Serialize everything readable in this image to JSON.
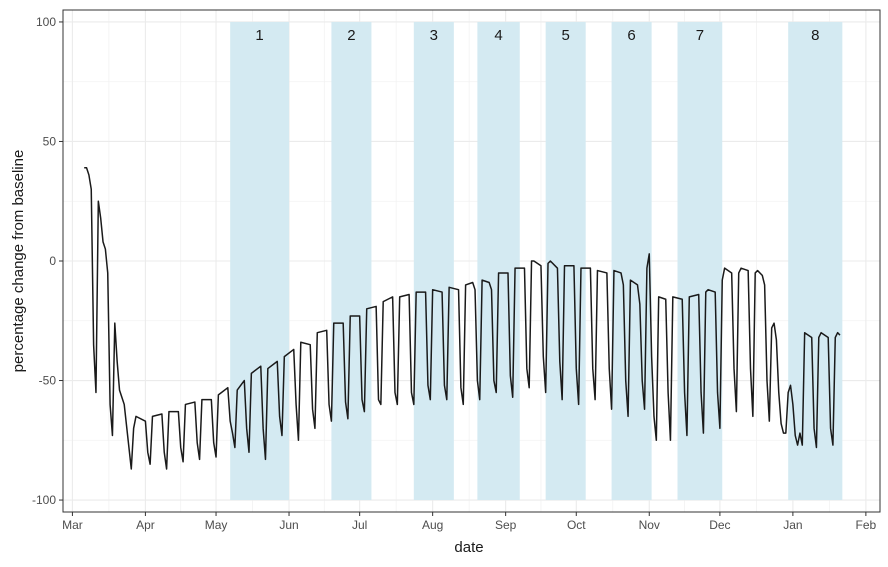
{
  "chart_data": {
    "type": "line",
    "xlabel": "date",
    "ylabel": "percentage change from baseline",
    "ylim": [
      -105,
      105
    ],
    "xlim": [
      "2020-02-26",
      "2021-02-07"
    ],
    "yticks": [
      -100,
      -50,
      0,
      50,
      100
    ],
    "ytick_labels": [
      "-100",
      "-50",
      "0",
      "50",
      "100"
    ],
    "xticks": [
      "2020-03-01",
      "2020-04-01",
      "2020-05-01",
      "2020-06-01",
      "2020-07-01",
      "2020-08-01",
      "2020-09-01",
      "2020-10-01",
      "2020-11-01",
      "2020-12-01",
      "2021-01-01",
      "2021-02-01"
    ],
    "xtick_labels": [
      "Mar",
      "Apr",
      "May",
      "Jun",
      "Jul",
      "Aug",
      "Sep",
      "Oct",
      "Nov",
      "Dec",
      "Jan",
      "Feb"
    ],
    "grid": true,
    "line_color": "#1a1a1a",
    "band_color": "#d4eaf2",
    "bands": [
      {
        "label": "1",
        "start": "2020-05-07",
        "end": "2020-06-01"
      },
      {
        "label": "2",
        "start": "2020-06-19",
        "end": "2020-07-06"
      },
      {
        "label": "3",
        "start": "2020-07-24",
        "end": "2020-08-10"
      },
      {
        "label": "4",
        "start": "2020-08-20",
        "end": "2020-09-07"
      },
      {
        "label": "5",
        "start": "2020-09-18",
        "end": "2020-10-05"
      },
      {
        "label": "6",
        "start": "2020-10-16",
        "end": "2020-11-02"
      },
      {
        "label": "7",
        "start": "2020-11-13",
        "end": "2020-12-02"
      },
      {
        "label": "8",
        "start": "2020-12-30",
        "end": "2021-01-22"
      }
    ],
    "series": [
      {
        "points": [
          [
            "2020-03-06",
            39
          ],
          [
            "2020-03-07",
            39
          ],
          [
            "2020-03-08",
            36
          ],
          [
            "2020-03-09",
            30
          ],
          [
            "2020-03-10",
            -35
          ],
          [
            "2020-03-11",
            -55
          ],
          [
            "2020-03-12",
            25
          ],
          [
            "2020-03-13",
            18
          ],
          [
            "2020-03-14",
            8
          ],
          [
            "2020-03-15",
            5
          ],
          [
            "2020-03-16",
            -5
          ],
          [
            "2020-03-17",
            -60
          ],
          [
            "2020-03-18",
            -73
          ],
          [
            "2020-03-19",
            -26
          ],
          [
            "2020-03-20",
            -42
          ],
          [
            "2020-03-21",
            -54
          ],
          [
            "2020-03-22",
            -57
          ],
          [
            "2020-03-23",
            -60
          ],
          [
            "2020-03-26",
            -87
          ],
          [
            "2020-03-27",
            -70
          ],
          [
            "2020-03-28",
            -65
          ],
          [
            "2020-04-01",
            -67
          ],
          [
            "2020-04-02",
            -80
          ],
          [
            "2020-04-03",
            -85
          ],
          [
            "2020-04-04",
            -65
          ],
          [
            "2020-04-08",
            -64
          ],
          [
            "2020-04-09",
            -80
          ],
          [
            "2020-04-10",
            -87
          ],
          [
            "2020-04-11",
            -63
          ],
          [
            "2020-04-15",
            -63
          ],
          [
            "2020-04-16",
            -78
          ],
          [
            "2020-04-17",
            -84
          ],
          [
            "2020-04-18",
            -60
          ],
          [
            "2020-04-22",
            -59
          ],
          [
            "2020-04-23",
            -76
          ],
          [
            "2020-04-24",
            -83
          ],
          [
            "2020-04-25",
            -58
          ],
          [
            "2020-04-29",
            -58
          ],
          [
            "2020-04-30",
            -76
          ],
          [
            "2020-05-01",
            -82
          ],
          [
            "2020-05-02",
            -56
          ],
          [
            "2020-05-06",
            -53
          ],
          [
            "2020-05-07",
            -67
          ],
          [
            "2020-05-08",
            -72
          ],
          [
            "2020-05-09",
            -78
          ],
          [
            "2020-05-10",
            -54
          ],
          [
            "2020-05-13",
            -50
          ],
          [
            "2020-05-14",
            -70
          ],
          [
            "2020-05-15",
            -80
          ],
          [
            "2020-05-16",
            -47
          ],
          [
            "2020-05-20",
            -44
          ],
          [
            "2020-05-21",
            -70
          ],
          [
            "2020-05-22",
            -83
          ],
          [
            "2020-05-23",
            -45
          ],
          [
            "2020-05-27",
            -42
          ],
          [
            "2020-05-28",
            -65
          ],
          [
            "2020-05-29",
            -73
          ],
          [
            "2020-05-30",
            -40
          ],
          [
            "2020-06-03",
            -37
          ],
          [
            "2020-06-04",
            -60
          ],
          [
            "2020-06-05",
            -75
          ],
          [
            "2020-06-06",
            -34
          ],
          [
            "2020-06-10",
            -35
          ],
          [
            "2020-06-11",
            -62
          ],
          [
            "2020-06-12",
            -70
          ],
          [
            "2020-06-13",
            -30
          ],
          [
            "2020-06-17",
            -29
          ],
          [
            "2020-06-18",
            -60
          ],
          [
            "2020-06-19",
            -67
          ],
          [
            "2020-06-20",
            -26
          ],
          [
            "2020-06-24",
            -26
          ],
          [
            "2020-06-25",
            -59
          ],
          [
            "2020-06-26",
            -66
          ],
          [
            "2020-06-27",
            -23
          ],
          [
            "2020-07-01",
            -23
          ],
          [
            "2020-07-02",
            -58
          ],
          [
            "2020-07-03",
            -63
          ],
          [
            "2020-07-04",
            -20
          ],
          [
            "2020-07-08",
            -19
          ],
          [
            "2020-07-09",
            -58
          ],
          [
            "2020-07-10",
            -60
          ],
          [
            "2020-07-11",
            -17
          ],
          [
            "2020-07-15",
            -15
          ],
          [
            "2020-07-16",
            -55
          ],
          [
            "2020-07-17",
            -60
          ],
          [
            "2020-07-18",
            -15
          ],
          [
            "2020-07-22",
            -14
          ],
          [
            "2020-07-23",
            -55
          ],
          [
            "2020-07-24",
            -60
          ],
          [
            "2020-07-25",
            -13
          ],
          [
            "2020-07-29",
            -13
          ],
          [
            "2020-07-30",
            -52
          ],
          [
            "2020-07-31",
            -58
          ],
          [
            "2020-08-01",
            -12
          ],
          [
            "2020-08-05",
            -13
          ],
          [
            "2020-08-06",
            -52
          ],
          [
            "2020-08-07",
            -58
          ],
          [
            "2020-08-08",
            -11
          ],
          [
            "2020-08-12",
            -12
          ],
          [
            "2020-08-13",
            -53
          ],
          [
            "2020-08-14",
            -60
          ],
          [
            "2020-08-15",
            -10
          ],
          [
            "2020-08-18",
            -9
          ],
          [
            "2020-08-19",
            -12
          ],
          [
            "2020-08-20",
            -50
          ],
          [
            "2020-08-21",
            -58
          ],
          [
            "2020-08-22",
            -8
          ],
          [
            "2020-08-25",
            -9
          ],
          [
            "2020-08-26",
            -12
          ],
          [
            "2020-08-27",
            -50
          ],
          [
            "2020-08-28",
            -55
          ],
          [
            "2020-08-29",
            -5
          ],
          [
            "2020-09-02",
            -5
          ],
          [
            "2020-09-03",
            -48
          ],
          [
            "2020-09-04",
            -57
          ],
          [
            "2020-09-05",
            -3
          ],
          [
            "2020-09-09",
            -3
          ],
          [
            "2020-09-10",
            -45
          ],
          [
            "2020-09-11",
            -53
          ],
          [
            "2020-09-12",
            0
          ],
          [
            "2020-09-13",
            0
          ],
          [
            "2020-09-16",
            -2
          ],
          [
            "2020-09-17",
            -40
          ],
          [
            "2020-09-18",
            -55
          ],
          [
            "2020-09-19",
            -1
          ],
          [
            "2020-09-20",
            0
          ],
          [
            "2020-09-23",
            -3
          ],
          [
            "2020-09-24",
            -42
          ],
          [
            "2020-09-25",
            -58
          ],
          [
            "2020-09-26",
            -2
          ],
          [
            "2020-09-30",
            -2
          ],
          [
            "2020-10-01",
            -45
          ],
          [
            "2020-10-02",
            -60
          ],
          [
            "2020-10-03",
            -3
          ],
          [
            "2020-10-07",
            -3
          ],
          [
            "2020-10-08",
            -45
          ],
          [
            "2020-10-09",
            -58
          ],
          [
            "2020-10-10",
            -4
          ],
          [
            "2020-10-14",
            -5
          ],
          [
            "2020-10-15",
            -45
          ],
          [
            "2020-10-16",
            -62
          ],
          [
            "2020-10-17",
            -4
          ],
          [
            "2020-10-20",
            -5
          ],
          [
            "2020-10-21",
            -10
          ],
          [
            "2020-10-22",
            -50
          ],
          [
            "2020-10-23",
            -65
          ],
          [
            "2020-10-24",
            -8
          ],
          [
            "2020-10-27",
            -10
          ],
          [
            "2020-10-28",
            -18
          ],
          [
            "2020-10-29",
            -50
          ],
          [
            "2020-10-30",
            -62
          ],
          [
            "2020-10-31",
            -3
          ],
          [
            "2020-11-01",
            3
          ],
          [
            "2020-11-02",
            -40
          ],
          [
            "2020-11-03",
            -65
          ],
          [
            "2020-11-04",
            -75
          ],
          [
            "2020-11-05",
            -15
          ],
          [
            "2020-11-08",
            -16
          ],
          [
            "2020-11-09",
            -55
          ],
          [
            "2020-11-10",
            -75
          ],
          [
            "2020-11-11",
            -15
          ],
          [
            "2020-11-15",
            -16
          ],
          [
            "2020-11-16",
            -55
          ],
          [
            "2020-11-17",
            -73
          ],
          [
            "2020-11-18",
            -15
          ],
          [
            "2020-11-22",
            -14
          ],
          [
            "2020-11-23",
            -55
          ],
          [
            "2020-11-24",
            -72
          ],
          [
            "2020-11-25",
            -13
          ],
          [
            "2020-11-26",
            -12
          ],
          [
            "2020-11-29",
            -13
          ],
          [
            "2020-11-30",
            -55
          ],
          [
            "2020-12-01",
            -70
          ],
          [
            "2020-12-02",
            -8
          ],
          [
            "2020-12-03",
            -3
          ],
          [
            "2020-12-06",
            -5
          ],
          [
            "2020-12-07",
            -45
          ],
          [
            "2020-12-08",
            -63
          ],
          [
            "2020-12-09",
            -5
          ],
          [
            "2020-12-10",
            -3
          ],
          [
            "2020-12-13",
            -4
          ],
          [
            "2020-12-14",
            -45
          ],
          [
            "2020-12-15",
            -65
          ],
          [
            "2020-12-16",
            -5
          ],
          [
            "2020-12-17",
            -4
          ],
          [
            "2020-12-19",
            -6
          ],
          [
            "2020-12-20",
            -10
          ],
          [
            "2020-12-21",
            -50
          ],
          [
            "2020-12-22",
            -67
          ],
          [
            "2020-12-23",
            -28
          ],
          [
            "2020-12-24",
            -26
          ],
          [
            "2020-12-25",
            -33
          ],
          [
            "2020-12-26",
            -55
          ],
          [
            "2020-12-27",
            -68
          ],
          [
            "2020-12-28",
            -72
          ],
          [
            "2020-12-29",
            -72
          ],
          [
            "2020-12-30",
            -55
          ],
          [
            "2020-12-31",
            -52
          ],
          [
            "2021-01-01",
            -60
          ],
          [
            "2021-01-02",
            -73
          ],
          [
            "2021-01-03",
            -77
          ],
          [
            "2021-01-04",
            -72
          ],
          [
            "2021-01-05",
            -77
          ],
          [
            "2021-01-06",
            -30
          ],
          [
            "2021-01-09",
            -32
          ],
          [
            "2021-01-10",
            -70
          ],
          [
            "2021-01-11",
            -78
          ],
          [
            "2021-01-12",
            -32
          ],
          [
            "2021-01-13",
            -30
          ],
          [
            "2021-01-16",
            -32
          ],
          [
            "2021-01-17",
            -70
          ],
          [
            "2021-01-18",
            -77
          ],
          [
            "2021-01-19",
            -32
          ],
          [
            "2021-01-20",
            -30
          ],
          [
            "2021-01-21",
            -31
          ]
        ]
      }
    ]
  }
}
